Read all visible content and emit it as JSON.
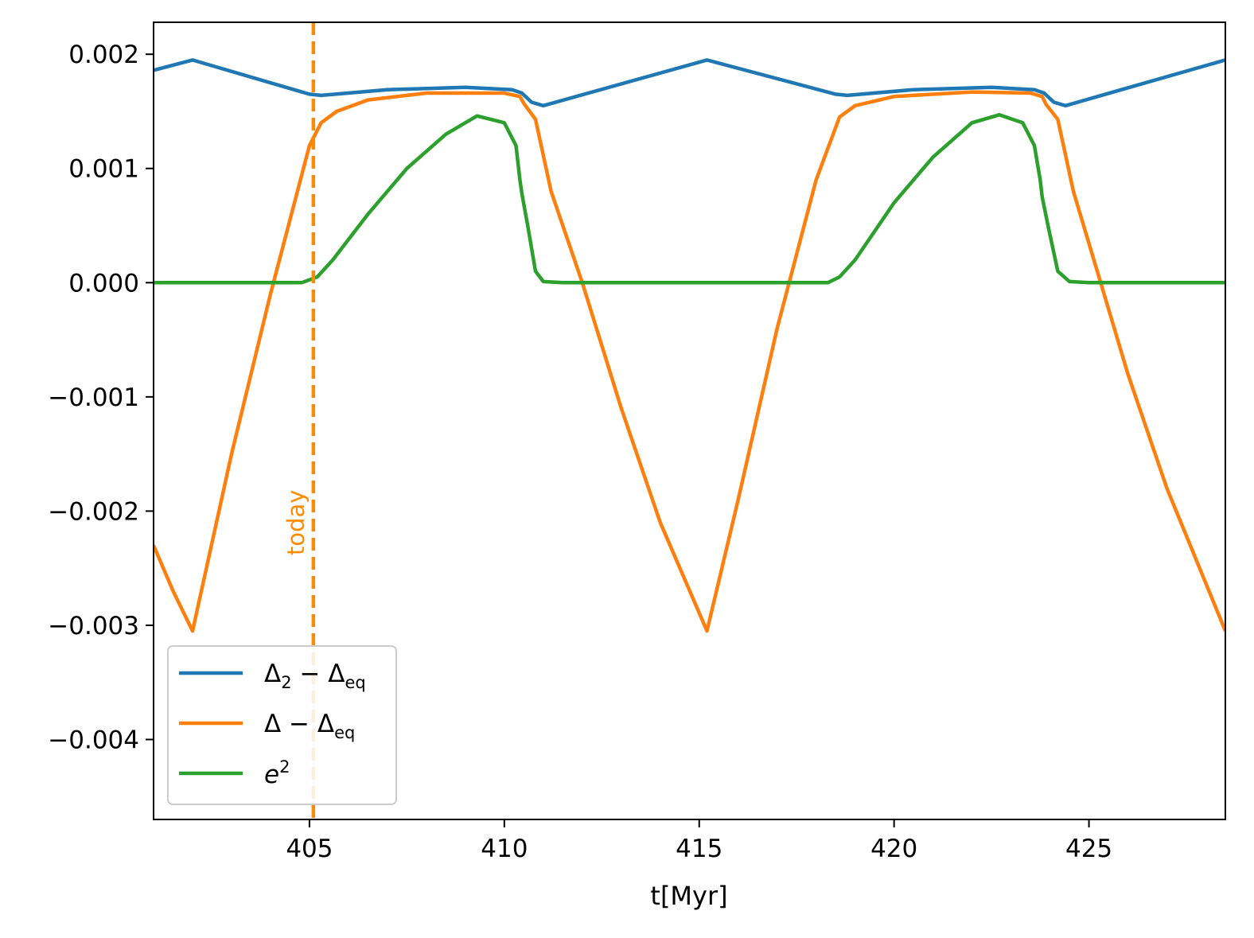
{
  "chart_data": {
    "type": "line",
    "xlabel": "t[Myr]",
    "ylabel": "",
    "title": "",
    "xlim": [
      401.0,
      428.5
    ],
    "ylim": [
      -0.0047,
      0.00228
    ],
    "xticks": [
      405,
      410,
      415,
      420,
      425
    ],
    "yticks": [
      0.002,
      0.001,
      0.0,
      -0.001,
      -0.002,
      -0.003,
      -0.004
    ],
    "ytick_labels": [
      "0.002",
      "0.001",
      "0.000",
      "−0.001",
      "−0.002",
      "−0.003",
      "−0.004"
    ],
    "grid": false,
    "legend_position": "lower-left",
    "annotation": {
      "text": "today",
      "x": 405.1,
      "y": -0.0021,
      "color": "#ff8c00"
    },
    "vline": {
      "x": 405.1,
      "color": "#ff8c00",
      "style": "dashed"
    },
    "series": [
      {
        "name_main": "Δ",
        "name_sub1": "2",
        "name_mid": " − Δ",
        "name_sub2": "eq",
        "color": "#1f77b4",
        "points": [
          [
            401.0,
            0.00186
          ],
          [
            402.0,
            0.00195
          ],
          [
            405.0,
            0.00165
          ],
          [
            405.3,
            0.00164
          ],
          [
            407.0,
            0.00169
          ],
          [
            409.0,
            0.00171
          ],
          [
            410.2,
            0.00169
          ],
          [
            410.45,
            0.00166
          ],
          [
            410.7,
            0.00158
          ],
          [
            411.0,
            0.00155
          ],
          [
            415.2,
            0.00195
          ],
          [
            418.5,
            0.00165
          ],
          [
            418.8,
            0.00164
          ],
          [
            420.5,
            0.00169
          ],
          [
            422.5,
            0.00171
          ],
          [
            423.6,
            0.00169
          ],
          [
            423.85,
            0.00166
          ],
          [
            424.1,
            0.00158
          ],
          [
            424.4,
            0.00155
          ],
          [
            428.5,
            0.00195
          ]
        ]
      },
      {
        "name_main": "Δ − Δ",
        "name_sub1": "",
        "name_mid": "",
        "name_sub2": "eq",
        "color": "#ff7f0e",
        "points": [
          [
            401.0,
            -0.0023
          ],
          [
            401.5,
            -0.0027
          ],
          [
            402.0,
            -0.00305
          ],
          [
            403.0,
            -0.0015
          ],
          [
            404.0,
            -0.0001
          ],
          [
            405.0,
            0.0012
          ],
          [
            405.3,
            0.0014
          ],
          [
            405.7,
            0.0015
          ],
          [
            406.5,
            0.0016
          ],
          [
            408.0,
            0.00166
          ],
          [
            410.0,
            0.00166
          ],
          [
            410.4,
            0.00163
          ],
          [
            410.5,
            0.00157
          ],
          [
            410.8,
            0.00143
          ],
          [
            411.2,
            0.0008
          ],
          [
            412.0,
            0.0
          ],
          [
            413.0,
            -0.0011
          ],
          [
            414.0,
            -0.0021
          ],
          [
            415.2,
            -0.00305
          ],
          [
            416.0,
            -0.0019
          ],
          [
            417.0,
            -0.0004
          ],
          [
            418.0,
            0.0009
          ],
          [
            418.6,
            0.00145
          ],
          [
            419.0,
            0.00155
          ],
          [
            420.0,
            0.00163
          ],
          [
            422.0,
            0.00167
          ],
          [
            423.5,
            0.00166
          ],
          [
            423.8,
            0.00163
          ],
          [
            423.9,
            0.00156
          ],
          [
            424.2,
            0.00143
          ],
          [
            424.6,
            0.0008
          ],
          [
            425.3,
            0.0
          ],
          [
            426.0,
            -0.0008
          ],
          [
            427.0,
            -0.0018
          ],
          [
            428.5,
            -0.00305
          ]
        ]
      },
      {
        "name_main": "e",
        "name_sub1": "",
        "name_mid": "",
        "name_sub2": "",
        "name_sup": "2",
        "color": "#2ca02c",
        "points": [
          [
            401.0,
            0.0
          ],
          [
            404.8,
            0.0
          ],
          [
            405.2,
            5e-05
          ],
          [
            405.6,
            0.0002
          ],
          [
            406.5,
            0.0006
          ],
          [
            407.5,
            0.001
          ],
          [
            408.5,
            0.0013
          ],
          [
            409.3,
            0.00146
          ],
          [
            410.0,
            0.0014
          ],
          [
            410.3,
            0.0012
          ],
          [
            410.4,
            0.0009
          ],
          [
            410.45,
            0.00078
          ],
          [
            410.6,
            0.0005
          ],
          [
            410.8,
            0.0001
          ],
          [
            411.0,
            1e-05
          ],
          [
            411.5,
            0.0
          ],
          [
            418.3,
            0.0
          ],
          [
            418.6,
            5e-05
          ],
          [
            419.0,
            0.0002
          ],
          [
            420.0,
            0.0007
          ],
          [
            421.0,
            0.0011
          ],
          [
            422.0,
            0.0014
          ],
          [
            422.7,
            0.00147
          ],
          [
            423.3,
            0.0014
          ],
          [
            423.6,
            0.0012
          ],
          [
            423.75,
            0.0009
          ],
          [
            423.8,
            0.00075
          ],
          [
            423.95,
            0.0005
          ],
          [
            424.2,
            0.0001
          ],
          [
            424.5,
            1e-05
          ],
          [
            425.0,
            0.0
          ],
          [
            428.5,
            0.0
          ]
        ]
      }
    ]
  }
}
